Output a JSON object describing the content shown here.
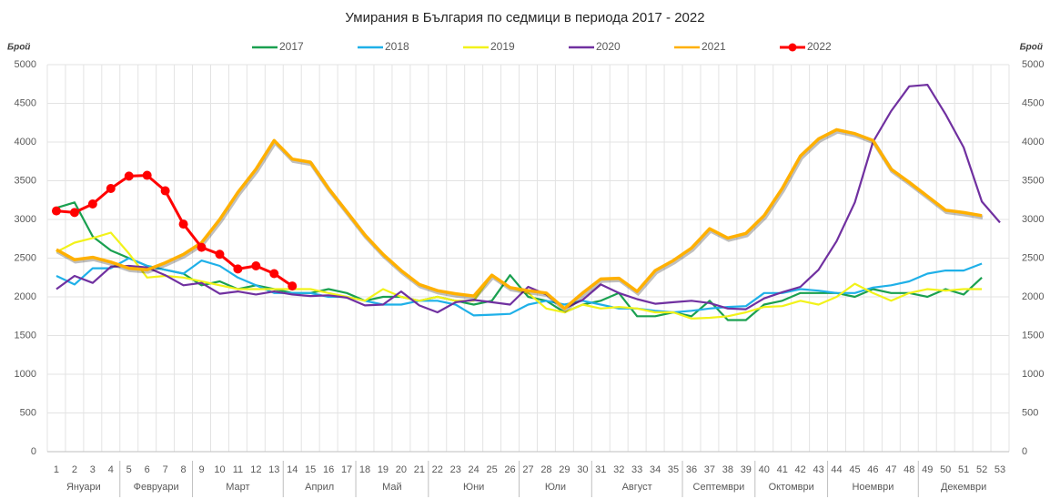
{
  "chart_data": {
    "type": "line",
    "title": "Умирания в България по седмици в периода 2017 - 2022",
    "y_label": "Брой",
    "y2_label": "Брой",
    "categories": [
      "1",
      "2",
      "3",
      "4",
      "5",
      "6",
      "7",
      "8",
      "9",
      "10",
      "11",
      "12",
      "13",
      "14",
      "15",
      "16",
      "17",
      "18",
      "19",
      "20",
      "21",
      "22",
      "23",
      "24",
      "25",
      "26",
      "27",
      "28",
      "29",
      "30",
      "31",
      "32",
      "33",
      "34",
      "35",
      "36",
      "37",
      "38",
      "39",
      "40",
      "41",
      "42",
      "43",
      "44",
      "45",
      "46",
      "47",
      "48",
      "49",
      "50",
      "51",
      "52",
      "53"
    ],
    "month_groups": [
      {
        "label": "Януари",
        "first": 1,
        "last": 4
      },
      {
        "label": "Февруари",
        "first": 5,
        "last": 8
      },
      {
        "label": "Март",
        "first": 9,
        "last": 13
      },
      {
        "label": "Април",
        "first": 14,
        "last": 17
      },
      {
        "label": "Май",
        "first": 18,
        "last": 21
      },
      {
        "label": "Юни",
        "first": 22,
        "last": 26
      },
      {
        "label": "Юли",
        "first": 27,
        "last": 30
      },
      {
        "label": "Август",
        "first": 31,
        "last": 35
      },
      {
        "label": "Септември",
        "first": 36,
        "last": 39
      },
      {
        "label": "Октомври",
        "first": 40,
        "last": 43
      },
      {
        "label": "Ноември",
        "first": 44,
        "last": 48
      },
      {
        "label": "Декември",
        "first": 49,
        "last": 53
      }
    ],
    "ylim": [
      0,
      5000
    ],
    "yticks": [
      0,
      500,
      1000,
      1500,
      2000,
      2500,
      3000,
      3500,
      4000,
      4500,
      5000
    ],
    "y2lim": [
      0,
      5000
    ],
    "y2ticks": [
      0,
      500,
      1000,
      1500,
      2000,
      2500,
      3000,
      3500,
      4000,
      4500,
      5000
    ],
    "grid": true,
    "legend": "top",
    "series": [
      {
        "name": "2017",
        "color": "#1aa050",
        "values": [
          3150,
          3220,
          2780,
          2600,
          2500,
          2400,
          2350,
          2300,
          2150,
          2200,
          2100,
          2150,
          2100,
          2050,
          2050,
          2100,
          2050,
          1950,
          2000,
          2000,
          1950,
          2000,
          1950,
          1900,
          1950,
          2280,
          2000,
          1950,
          1800,
          1900,
          1950,
          2050,
          1750,
          1750,
          1800,
          1750,
          1950,
          1700,
          1700,
          1900,
          1950,
          2050,
          2050,
          2050,
          2000,
          2100,
          2050,
          2050,
          2000,
          2100,
          2030,
          2250,
          null
        ]
      },
      {
        "name": "2018",
        "color": "#1fb0e8",
        "values": [
          2270,
          2160,
          2370,
          2370,
          2500,
          2400,
          2350,
          2300,
          2470,
          2400,
          2250,
          2150,
          2050,
          2050,
          2050,
          2000,
          2000,
          1950,
          1900,
          1900,
          1950,
          1950,
          1900,
          1760,
          1770,
          1780,
          1900,
          1950,
          1900,
          1950,
          1900,
          1850,
          1850,
          1820,
          1800,
          1820,
          1850,
          1870,
          1880,
          2050,
          2050,
          2100,
          2080,
          2050,
          2050,
          2120,
          2150,
          2200,
          2300,
          2340,
          2340,
          2430,
          null
        ]
      },
      {
        "name": "2019",
        "color": "#f2f21a",
        "values": [
          2580,
          2700,
          2760,
          2830,
          2560,
          2250,
          2270,
          2250,
          2200,
          2150,
          2100,
          2100,
          2100,
          2100,
          2100,
          2050,
          2000,
          1950,
          2100,
          2000,
          1950,
          2000,
          1950,
          1950,
          2280,
          2120,
          2050,
          1850,
          1800,
          1900,
          1850,
          1870,
          1850,
          1800,
          1800,
          1720,
          1730,
          1750,
          1800,
          1870,
          1880,
          1950,
          1900,
          2000,
          2170,
          2050,
          1950,
          2050,
          2100,
          2080,
          2100,
          2100,
          null
        ]
      },
      {
        "name": "2020",
        "color": "#7030a0",
        "values": [
          2100,
          2270,
          2180,
          2390,
          2400,
          2380,
          2280,
          2150,
          2180,
          2040,
          2070,
          2030,
          2070,
          2030,
          2010,
          2020,
          1990,
          1890,
          1900,
          2070,
          1890,
          1800,
          1930,
          1960,
          1930,
          1900,
          2130,
          2030,
          1850,
          1960,
          2160,
          2050,
          1970,
          1910,
          1930,
          1950,
          1920,
          1850,
          1840,
          1980,
          2060,
          2130,
          2350,
          2720,
          3220,
          4000,
          4400,
          4720,
          4740,
          4360,
          3930,
          3230,
          2960
        ]
      },
      {
        "name": "2021",
        "color": "#ffb000",
        "values": [
          2610,
          2480,
          2510,
          2450,
          2370,
          2350,
          2440,
          2550,
          2700,
          3000,
          3350,
          3650,
          4020,
          3780,
          3740,
          3400,
          3100,
          2800,
          2550,
          2340,
          2160,
          2080,
          2040,
          2010,
          2280,
          2120,
          2080,
          2050,
          1850,
          2050,
          2230,
          2240,
          2070,
          2340,
          2470,
          2630,
          2880,
          2760,
          2820,
          3050,
          3400,
          3820,
          4040,
          4160,
          4110,
          4020,
          3650,
          3480,
          3300,
          3120,
          3090,
          3050,
          null
        ]
      },
      {
        "name": "2022",
        "color": "#ff0000",
        "markers": true,
        "values": [
          3110,
          3090,
          3200,
          3400,
          3560,
          3570,
          3370,
          2940,
          2640,
          2550,
          2360,
          2400,
          2300,
          2140,
          null,
          null,
          null,
          null,
          null,
          null,
          null,
          null,
          null,
          null,
          null,
          null,
          null,
          null,
          null,
          null,
          null,
          null,
          null,
          null,
          null,
          null,
          null,
          null,
          null,
          null,
          null,
          null,
          null,
          null,
          null,
          null,
          null,
          null,
          null,
          null,
          null,
          null,
          null
        ]
      }
    ]
  }
}
